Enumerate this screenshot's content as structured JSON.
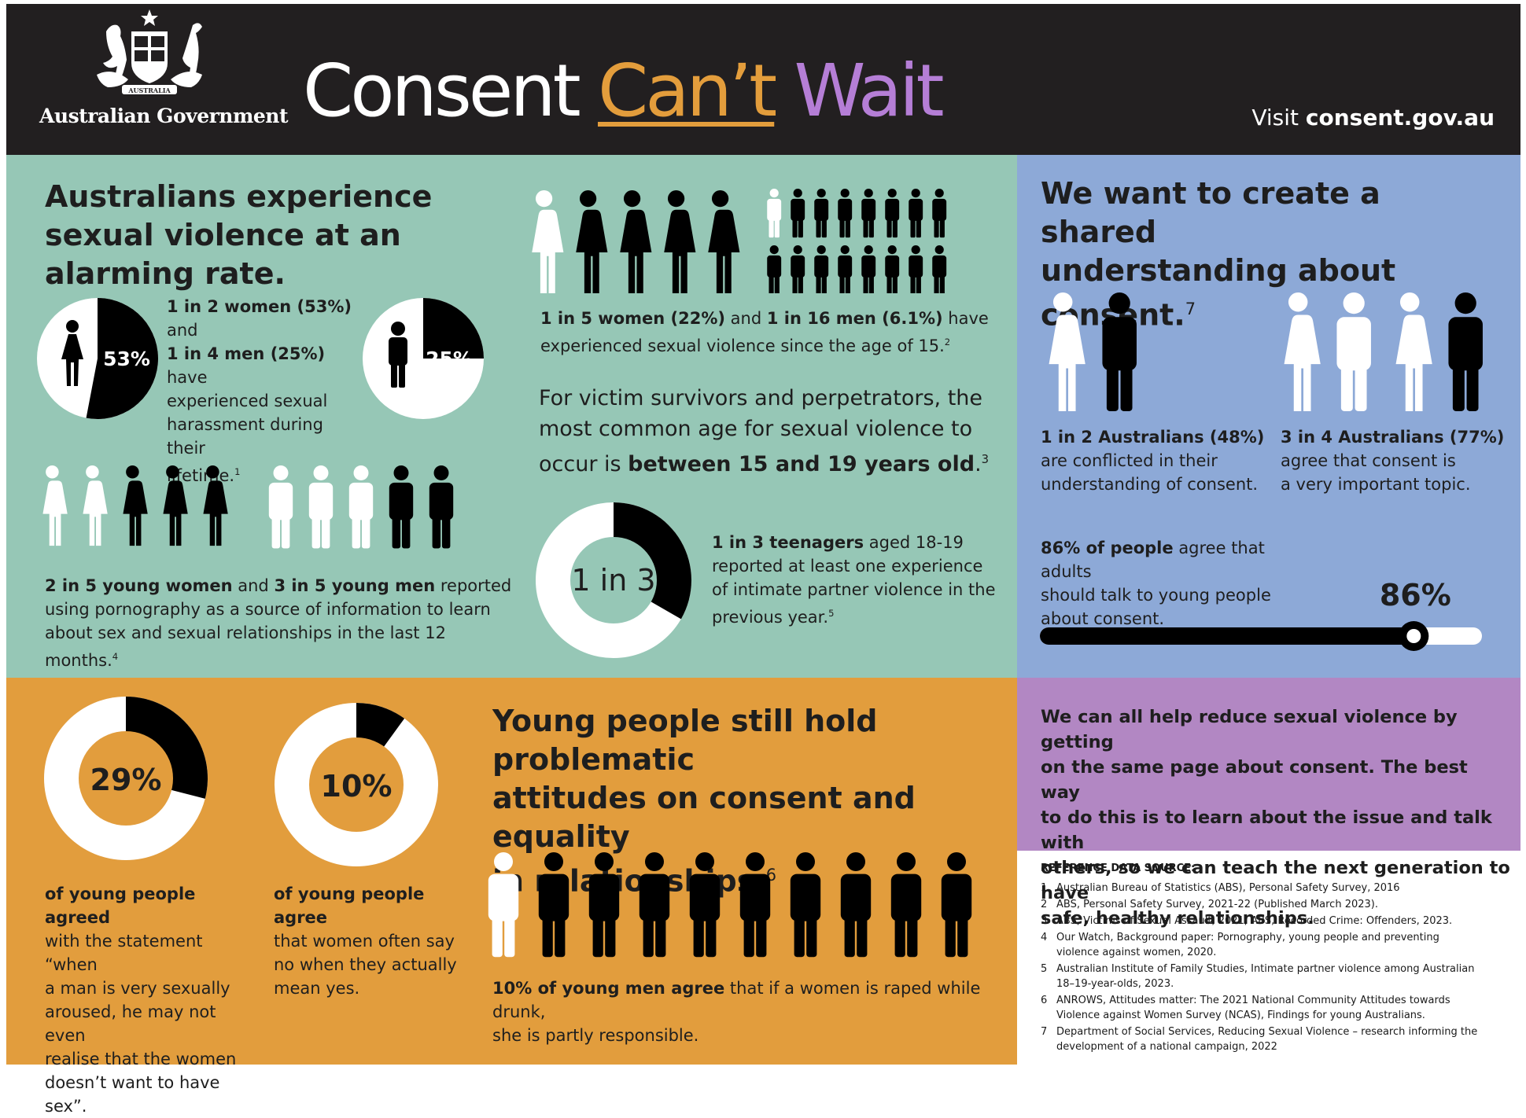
{
  "header": {
    "gov_label": "Australian Government",
    "crest_text": "AUSTRALIA",
    "campaign_title": {
      "part1": "Consent ",
      "part2": "Can’t",
      "part3": " Wait"
    },
    "visit_prefix": "Visit ",
    "visit_url": "consent.gov.au"
  },
  "colors": {
    "header_bg": "#221f20",
    "green": "#96c7b6",
    "blue": "#8da9d7",
    "orange": "#e29d3d",
    "purple": "#b287c3",
    "accent_orange": "#e39d3c",
    "accent_purple": "#b57ed6"
  },
  "left": {
    "heading": "Australians experience sexual violence at an alarming rate.",
    "harassment": {
      "women_pct_label": "53%",
      "women_pct": 53,
      "men_pct_label": "25%",
      "men_pct": 25,
      "line1_bold": "1 in 2 women (53%)",
      "line1_rest": " and",
      "line2_bold": "1 in 4 men (25%)",
      "line2_rest": " have",
      "line3": "experienced sexual",
      "line4": "harassment during their",
      "line5": "lifetime.",
      "ref": "1"
    },
    "pornography": {
      "women_figures": {
        "white": 2,
        "black": 3
      },
      "men_figures": {
        "white": 3,
        "black": 2
      },
      "bold1": "2 in 5 young women",
      "mid": " and ",
      "bold2": "3 in 5 young men",
      "rest1": " reported",
      "line2": "using pornography as a source of information to learn",
      "line3": "about sex and sexual relationships in the last 12 months.",
      "ref": "4"
    }
  },
  "middle": {
    "since15": {
      "women_figures": {
        "white": 1,
        "black": 4
      },
      "men_figures": {
        "white": 1,
        "black": 15
      },
      "bold1": "1 in 5 women (22%)",
      "mid": " and ",
      "bold2": "1 in 16 men (6.1%)",
      "rest1": " have",
      "line2": "experienced sexual violence since the age of 15.",
      "ref": "2"
    },
    "age": {
      "line1": "For victim survivors and perpetrators, the",
      "line2": "most common age for sexual violence to",
      "line3_pre": "occur is ",
      "line3_bold": "between 15 and 19 years old",
      "line3_end": ".",
      "ref": "3"
    },
    "ipv": {
      "donut_label": "1 in 3",
      "fraction": 0.333,
      "bold": "1 in 3 teenagers",
      "rest1": " aged 18-19",
      "line2": "reported at least one experience",
      "line3": "of intimate partner violence in the",
      "line4": "previous year.",
      "ref": "5"
    }
  },
  "right": {
    "heading_line1": "We want to create a shared",
    "heading_line2": "understanding about consent.",
    "heading_ref": "7",
    "conflicted": {
      "figures": {
        "white": 1,
        "black": 1
      },
      "bold": "1 in 2 Australians (48%)",
      "line2": "are conflicted in their",
      "line3": "understanding of consent."
    },
    "important": {
      "figures": {
        "white": 3,
        "black": 1
      },
      "bold": "3 in 4 Australians (77%)",
      "line2": "agree that consent is",
      "line3": "a very important topic."
    },
    "talk": {
      "bold": "86% of people",
      "rest1": " agree that adults",
      "line2": "should talk to young people",
      "line3": "about consent.",
      "pct_label": "86%",
      "value": 86
    }
  },
  "bottom": {
    "stat29": {
      "label": "29%",
      "value": 29,
      "bold": "of young people agreed",
      "line2": "with the statement “when",
      "line3": "a man is very sexually",
      "line4": "aroused, he may not even",
      "line5": "realise that the women",
      "line6": "doesn’t want to have sex”."
    },
    "stat10": {
      "label": "10%",
      "value": 10,
      "bold": "of young people agree",
      "line2": "that women often say",
      "line3": "no when they actually",
      "line4": "mean yes."
    },
    "heading_line1": "Young people still hold problematic",
    "heading_line2": "attitudes on consent and equality",
    "heading_line3": "in relationships.",
    "heading_ref": "6",
    "men_figures": {
      "white": 1,
      "black": 9
    },
    "men_bold": "10% of young men agree",
    "men_rest": " that if a women is raped while drunk,",
    "men_line2": "she is partly responsible."
  },
  "cta": {
    "line1": "We can all help reduce sexual violence by getting",
    "line2": "on the same page about consent. The best way",
    "line3": "to do this is to learn about the issue and talk with",
    "line4": "others, so we can teach the next generation to have",
    "line5": "safe, healthy relationships."
  },
  "references": {
    "title": "REFERENCE DATA SOURCE:",
    "items": [
      {
        "n": "1",
        "text": "Australian Bureau of Statistics (ABS), Personal Safety Survey, 2016"
      },
      {
        "n": "2",
        "text": "ABS, Personal Safety Survey, 2021-22 (Published March 2023)."
      },
      {
        "n": "3",
        "text": "ABS, Victims of Sexual Assault, 2021; ABS, Recorded Crime: Offenders, 2023."
      },
      {
        "n": "4",
        "text": "Our Watch, Background paper: Pornography, young people and preventing violence against women, 2020."
      },
      {
        "n": "5",
        "text": "Australian Institute of Family Studies, Intimate partner violence among Australian 18–19-year-olds, 2023."
      },
      {
        "n": "6",
        "text": "ANROWS, Attitudes matter: The 2021 National Community Attitudes towards Violence against Women Survey (NCAS), Findings for young Australians."
      },
      {
        "n": "7",
        "text": "Department of Social Services, Reducing Sexual Violence – research informing the development of a national campaign, 2022"
      }
    ]
  }
}
